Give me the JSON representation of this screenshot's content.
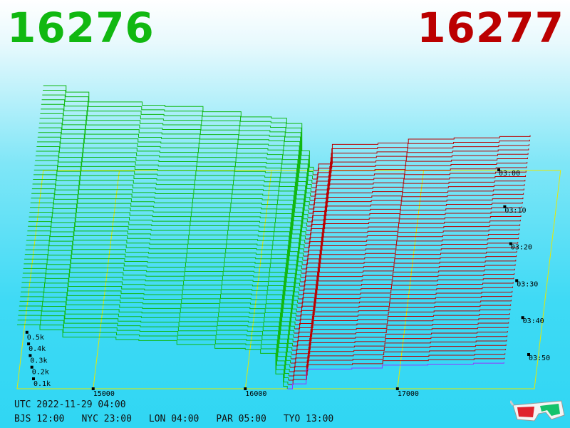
{
  "header": {
    "left_value": "16276",
    "right_value": "16277",
    "left_color": "#11b811",
    "right_color": "#bb0000"
  },
  "footer": {
    "utc": "UTC 2022-11-29 04:00",
    "zones": [
      "BJS 12:00",
      "NYC 23:00",
      "LON 04:00",
      "PAR 05:00",
      "TYO 13:00"
    ]
  },
  "icons": {
    "glasses": "3d-glasses-icon"
  },
  "chart_data": {
    "type": "3d-depth-waterfall",
    "price_axis": {
      "ticks": [
        15000,
        16000,
        17000
      ],
      "range": [
        14500,
        17900
      ]
    },
    "time_axis": {
      "ticks": [
        "03:00",
        "03:10",
        "03:20",
        "03:30",
        "03:40",
        "03:50"
      ]
    },
    "volume_axis": {
      "ticks": [
        "0.1k",
        "0.2k",
        "0.3k",
        "0.4k",
        "0.5k"
      ]
    },
    "series": [
      {
        "side": "bid",
        "color": "#11b811",
        "price_levels": [
          14500,
          14650,
          14800,
          15150,
          15300,
          15550,
          15800,
          16000,
          16100,
          16200,
          16250,
          16276
        ],
        "depth_k": [
          1.3,
          1.2,
          1.05,
          1.0,
          0.98,
          0.9,
          0.82,
          0.8,
          0.72,
          0.3,
          0.05,
          0
        ]
      },
      {
        "side": "ask",
        "color": "#bb0000",
        "price_levels": [
          16277,
          16310,
          16400,
          16700,
          16900,
          17200,
          17500,
          17700
        ],
        "depth_k": [
          0,
          0.1,
          0.4,
          0.42,
          0.48,
          0.5,
          0.52,
          0.54
        ]
      }
    ]
  }
}
